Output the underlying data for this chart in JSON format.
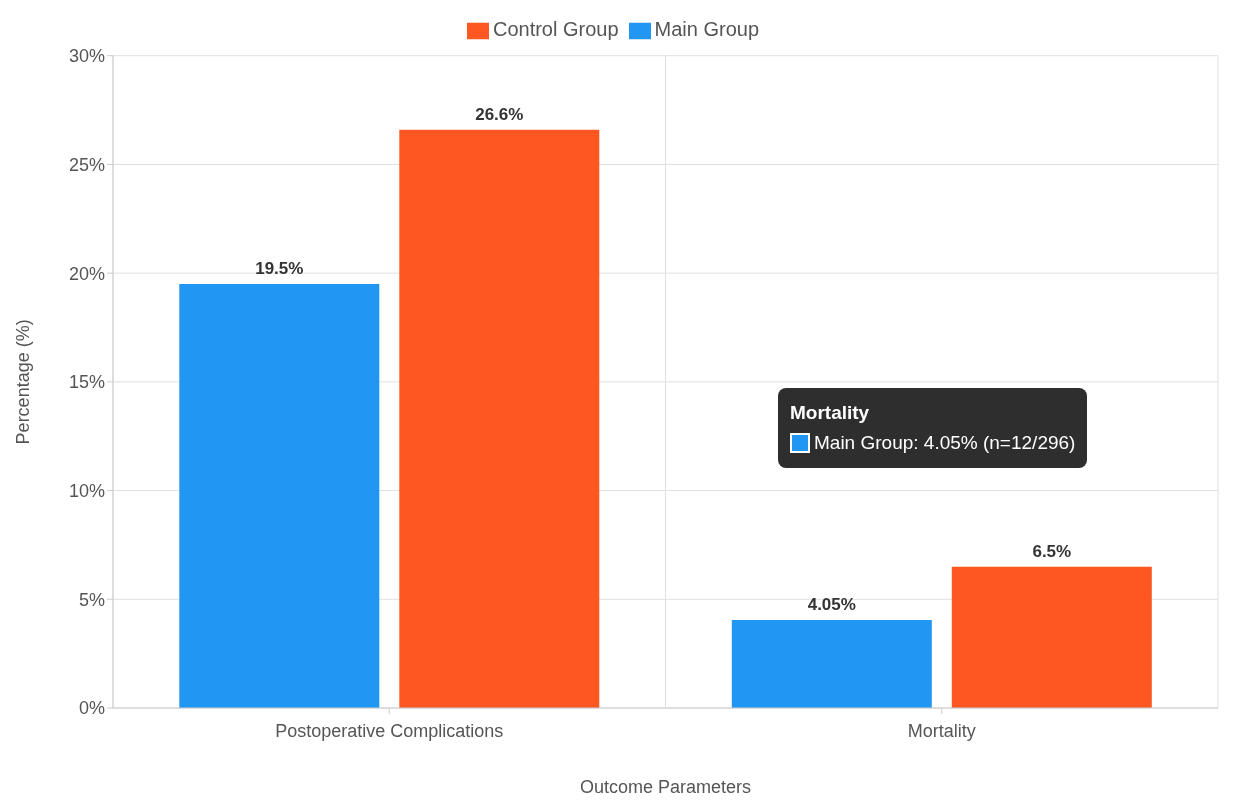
{
  "chart_data": {
    "type": "bar",
    "xlabel": "Outcome Parameters",
    "ylabel": "Percentage (%)",
    "categories": [
      "Postoperative Complications",
      "Mortality"
    ],
    "series": [
      {
        "name": "Main Group",
        "color": "#2196f3",
        "values": [
          19.5,
          4.05
        ],
        "value_labels": [
          "19.5%",
          "4.05%"
        ]
      },
      {
        "name": "Control Group",
        "color": "#ff5722",
        "values": [
          26.6,
          6.5
        ],
        "value_labels": [
          "26.6%",
          "6.5%"
        ]
      }
    ],
    "ylim": [
      0,
      30
    ],
    "yticks": [
      {
        "value": 0,
        "label": "0%"
      },
      {
        "value": 5,
        "label": "5%"
      },
      {
        "value": 10,
        "label": "10%"
      },
      {
        "value": 15,
        "label": "15%"
      },
      {
        "value": 20,
        "label": "20%"
      },
      {
        "value": 25,
        "label": "25%"
      },
      {
        "value": 30,
        "label": "30%"
      }
    ],
    "grid": true,
    "legend": "top",
    "annotations": [
      "Mortality",
      "Main Group: 4.05% (n=12/296)"
    ]
  }
}
